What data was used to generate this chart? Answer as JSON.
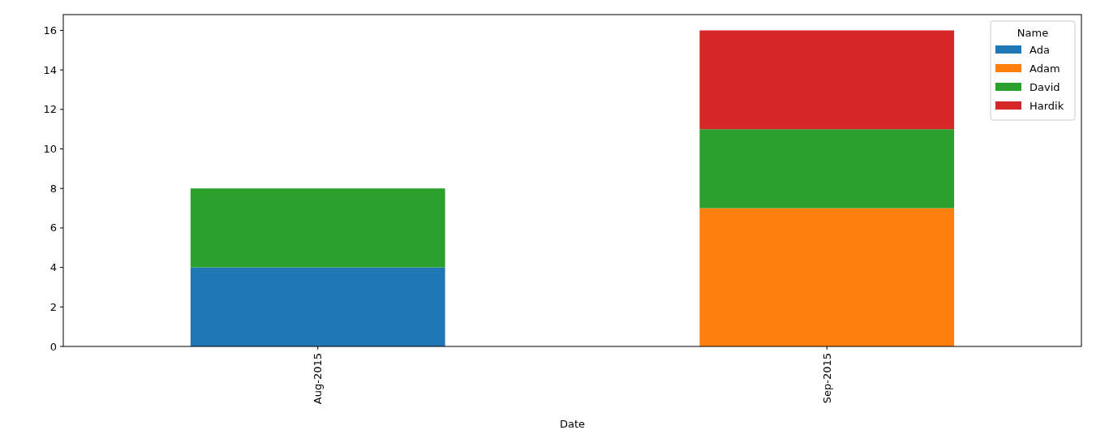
{
  "chart_data": {
    "type": "bar",
    "stacked": true,
    "xlabel": "Date",
    "legend_title": "Name",
    "legend": "top right",
    "grid": false,
    "categories": [
      "Aug-2015",
      "Sep-2015"
    ],
    "series": [
      {
        "name": "Ada",
        "color": "#1f77b4",
        "values": [
          4,
          null
        ]
      },
      {
        "name": "Adam",
        "color": "#ff7f0e",
        "values": [
          null,
          7
        ]
      },
      {
        "name": "David",
        "color": "#2ca02c",
        "values": [
          4,
          4
        ]
      },
      {
        "name": "Hardik",
        "color": "#d62728",
        "values": [
          null,
          5
        ]
      }
    ],
    "ylim": [
      0,
      16.8
    ],
    "yticks": [
      0,
      2,
      4,
      6,
      8,
      10,
      12,
      14,
      16
    ]
  }
}
